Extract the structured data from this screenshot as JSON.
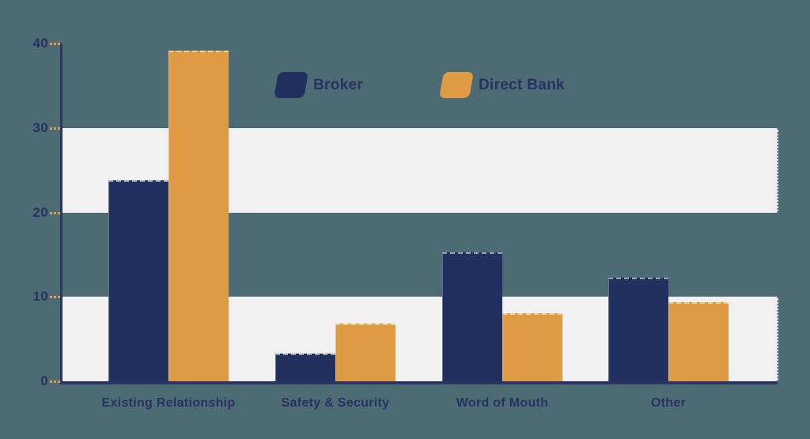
{
  "background_color": "#4D6B72",
  "colors": {
    "navy": "#22305F",
    "orange": "#DF9C44",
    "band": "#F2F1F2",
    "axis": "#2A3564",
    "text": "#273261",
    "tick": "#DF9C44"
  },
  "legend": {
    "position": "top-center",
    "items": [
      "Broker",
      "Direct Bank"
    ]
  },
  "chart_data": {
    "type": "bar",
    "title": "",
    "xlabel": "",
    "ylabel": "",
    "categories": [
      "Existing Relationship",
      "Safety & Security",
      "Word of Mouth",
      "Other"
    ],
    "series": [
      {
        "name": "Broker",
        "color": "#22305F",
        "values": [
          23.8,
          3.3,
          15.3,
          12.3
        ]
      },
      {
        "name": "Direct Bank",
        "color": "#DF9C44",
        "values": [
          39.2,
          6.8,
          8.1,
          9.4
        ]
      }
    ],
    "ylim": [
      0,
      40
    ],
    "y_ticks": [
      0,
      10,
      20,
      30,
      40
    ],
    "grid": "alternating-horizontal-bands",
    "grid_bands": [
      [
        0,
        10
      ],
      [
        20,
        30
      ]
    ],
    "legend_position": "top-center"
  }
}
